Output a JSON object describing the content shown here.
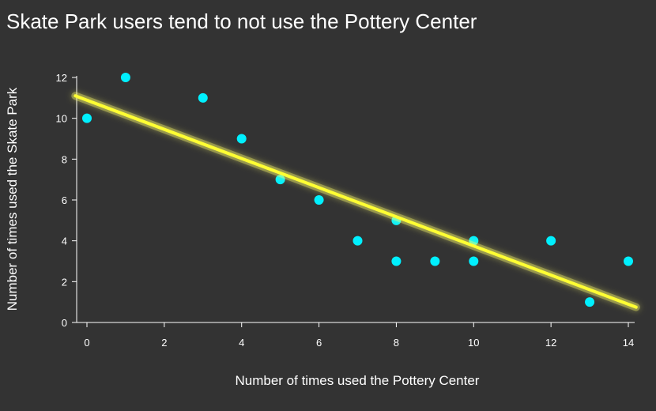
{
  "chart_data": {
    "type": "scatter",
    "title": "Skate Park users tend to not use the Pottery Center",
    "xlabel": "Number of times used the Pottery Center",
    "ylabel": "Number of times used the Skate Park",
    "xlim": [
      0,
      14
    ],
    "ylim": [
      0,
      12
    ],
    "xticks": [
      0,
      2,
      4,
      6,
      8,
      10,
      12,
      14
    ],
    "yticks": [
      0,
      2,
      4,
      6,
      8,
      10,
      12
    ],
    "grid": false,
    "points": [
      {
        "x": 0,
        "y": 10
      },
      {
        "x": 1,
        "y": 12
      },
      {
        "x": 3,
        "y": 11
      },
      {
        "x": 4,
        "y": 9
      },
      {
        "x": 5,
        "y": 7
      },
      {
        "x": 6,
        "y": 6
      },
      {
        "x": 7,
        "y": 4
      },
      {
        "x": 8,
        "y": 5
      },
      {
        "x": 8,
        "y": 3
      },
      {
        "x": 9,
        "y": 3
      },
      {
        "x": 10,
        "y": 4
      },
      {
        "x": 10,
        "y": 3
      },
      {
        "x": 12,
        "y": 4
      },
      {
        "x": 13,
        "y": 1
      },
      {
        "x": 14,
        "y": 3
      }
    ],
    "trend_line": {
      "x": [
        -0.3,
        14.2
      ],
      "y": [
        11.1,
        0.75
      ]
    },
    "colors": {
      "background": "#333333",
      "point": "#00f0ff",
      "trend_line": "#ffff33",
      "trend_glow": "#ffff66",
      "text": "#ffffff",
      "axis": "#ffffff"
    }
  }
}
